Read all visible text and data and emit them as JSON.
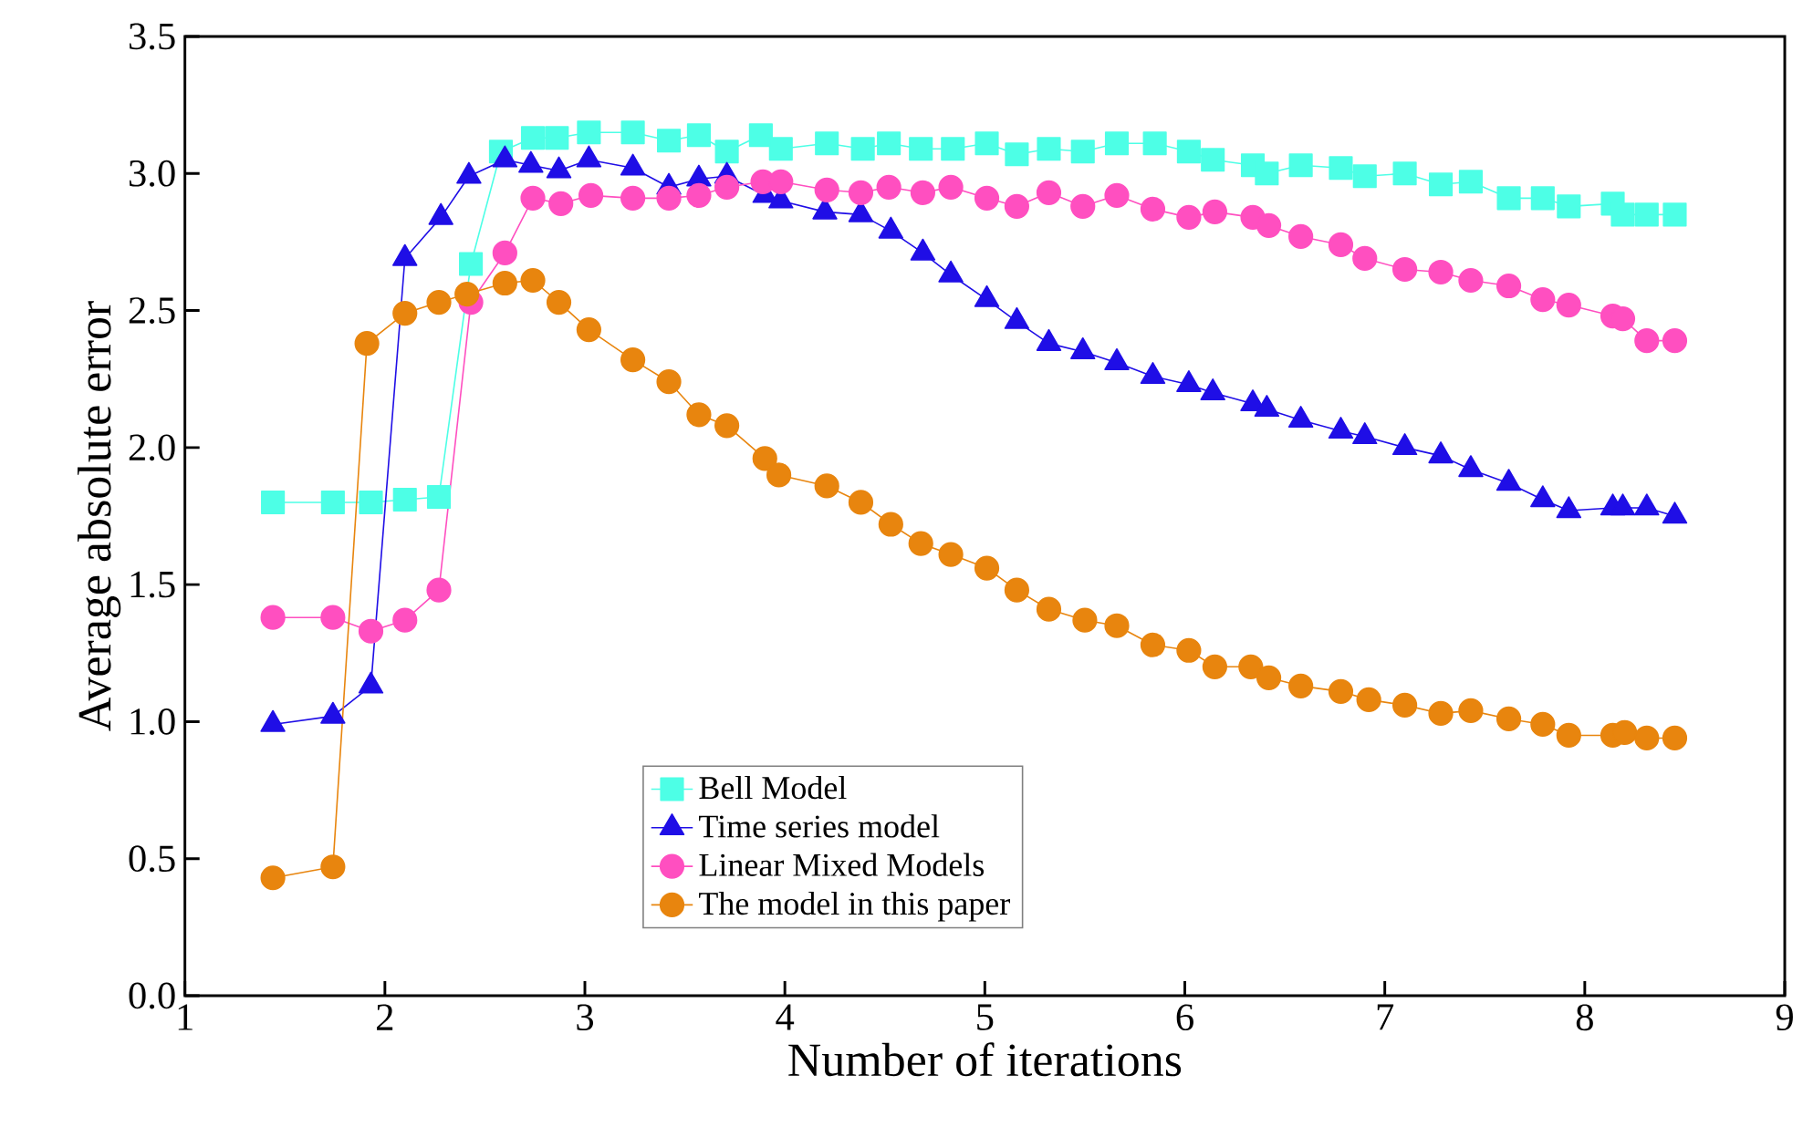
{
  "chart_data": {
    "type": "line",
    "xlabel": "Number of iterations",
    "ylabel": "Average absolute error",
    "xlim": [
      1,
      9
    ],
    "xticks": [
      1,
      2,
      3,
      4,
      5,
      6,
      7,
      8,
      9
    ],
    "ylim": [
      0,
      3.5
    ],
    "yticks": [
      {
        "value": 0,
        "label": "0.0"
      },
      {
        "value": 0.5,
        "label": "0.5"
      },
      {
        "value": 1,
        "label": "1.0"
      },
      {
        "value": 1.5,
        "label": "1.5"
      },
      {
        "value": 2,
        "label": "2.0"
      },
      {
        "value": 2.5,
        "label": "2.5"
      },
      {
        "value": 3,
        "label": "3.0"
      },
      {
        "value": 3.5,
        "label": "3.5"
      }
    ],
    "grid": false,
    "legend": "bottom",
    "line_style": "solid",
    "series": [
      {
        "name": "Bell Model",
        "color": "#4dffe6",
        "marker": "square",
        "x": [
          1.44,
          1.74,
          1.93,
          2.1,
          2.27,
          2.43,
          2.58,
          2.74,
          2.86,
          3.02,
          3.24,
          3.42,
          3.57,
          3.71,
          3.88,
          3.98,
          4.21,
          4.39,
          4.52,
          4.68,
          4.84,
          5.01,
          5.16,
          5.32,
          5.49,
          5.66,
          5.85,
          6.02,
          6.14,
          6.34,
          6.41,
          6.58,
          6.78,
          6.9,
          7.1,
          7.28,
          7.43,
          7.62,
          7.79,
          7.92,
          8.14,
          8.19,
          8.31,
          8.45
        ],
        "values": [
          1.8,
          1.8,
          1.8,
          1.81,
          1.82,
          2.67,
          3.08,
          3.13,
          3.13,
          3.15,
          3.15,
          3.12,
          3.14,
          3.08,
          3.14,
          3.09,
          3.11,
          3.09,
          3.11,
          3.09,
          3.09,
          3.11,
          3.07,
          3.09,
          3.08,
          3.11,
          3.11,
          3.08,
          3.05,
          3.03,
          3.0,
          3.03,
          3.02,
          2.99,
          3.0,
          2.96,
          2.97,
          2.91,
          2.91,
          2.88,
          2.89,
          2.85,
          2.85,
          2.85
        ]
      },
      {
        "name": "Time series model",
        "color": "#1f0ee6",
        "marker": "triangle",
        "x": [
          1.44,
          1.74,
          1.93,
          2.1,
          2.28,
          2.42,
          2.6,
          2.73,
          2.87,
          3.02,
          3.24,
          3.42,
          3.57,
          3.71,
          3.9,
          3.98,
          4.2,
          4.38,
          4.53,
          4.69,
          4.83,
          5.01,
          5.16,
          5.32,
          5.49,
          5.66,
          5.84,
          6.02,
          6.14,
          6.34,
          6.41,
          6.58,
          6.78,
          6.9,
          7.1,
          7.28,
          7.43,
          7.62,
          7.79,
          7.92,
          8.14,
          8.19,
          8.31,
          8.45
        ],
        "values": [
          0.99,
          1.02,
          1.13,
          2.69,
          2.84,
          2.99,
          3.05,
          3.03,
          3.01,
          3.05,
          3.02,
          2.95,
          2.98,
          2.99,
          2.92,
          2.9,
          2.86,
          2.85,
          2.79,
          2.71,
          2.63,
          2.54,
          2.46,
          2.38,
          2.35,
          2.31,
          2.26,
          2.23,
          2.2,
          2.16,
          2.14,
          2.1,
          2.06,
          2.04,
          2.0,
          1.97,
          1.92,
          1.87,
          1.81,
          1.77,
          1.78,
          1.78,
          1.78,
          1.75
        ]
      },
      {
        "name": "Linear Mixed Models",
        "color": "#ff4fc0",
        "marker": "circle",
        "x": [
          1.44,
          1.74,
          1.93,
          2.1,
          2.27,
          2.43,
          2.6,
          2.74,
          2.88,
          3.03,
          3.24,
          3.42,
          3.57,
          3.71,
          3.89,
          3.98,
          4.21,
          4.38,
          4.52,
          4.69,
          4.83,
          5.01,
          5.16,
          5.32,
          5.49,
          5.66,
          5.84,
          6.02,
          6.15,
          6.34,
          6.42,
          6.58,
          6.78,
          6.9,
          7.1,
          7.28,
          7.43,
          7.62,
          7.79,
          7.92,
          8.14,
          8.19,
          8.31,
          8.45
        ],
        "values": [
          1.38,
          1.38,
          1.33,
          1.37,
          1.48,
          2.53,
          2.71,
          2.91,
          2.89,
          2.92,
          2.91,
          2.91,
          2.92,
          2.95,
          2.97,
          2.97,
          2.94,
          2.93,
          2.95,
          2.93,
          2.95,
          2.91,
          2.88,
          2.93,
          2.88,
          2.92,
          2.87,
          2.84,
          2.86,
          2.84,
          2.81,
          2.77,
          2.74,
          2.69,
          2.65,
          2.64,
          2.61,
          2.59,
          2.54,
          2.52,
          2.48,
          2.47,
          2.39,
          2.39
        ]
      },
      {
        "name": "The model in this paper",
        "color": "#e8850e",
        "marker": "circle",
        "x": [
          1.44,
          1.74,
          1.91,
          2.1,
          2.27,
          2.41,
          2.6,
          2.74,
          2.87,
          3.02,
          3.24,
          3.42,
          3.57,
          3.71,
          3.9,
          3.97,
          4.21,
          4.38,
          4.53,
          4.68,
          4.83,
          5.01,
          5.16,
          5.32,
          5.5,
          5.66,
          5.84,
          6.02,
          6.15,
          6.33,
          6.42,
          6.58,
          6.78,
          6.92,
          7.1,
          7.28,
          7.43,
          7.62,
          7.79,
          7.92,
          8.14,
          8.2,
          8.31,
          8.45
        ],
        "values": [
          0.43,
          0.47,
          2.38,
          2.49,
          2.53,
          2.56,
          2.6,
          2.61,
          2.53,
          2.43,
          2.32,
          2.24,
          2.12,
          2.08,
          1.96,
          1.9,
          1.86,
          1.8,
          1.72,
          1.65,
          1.61,
          1.56,
          1.48,
          1.41,
          1.37,
          1.35,
          1.28,
          1.26,
          1.2,
          1.2,
          1.16,
          1.13,
          1.11,
          1.08,
          1.06,
          1.03,
          1.04,
          1.01,
          0.99,
          0.95,
          0.95,
          0.96,
          0.94,
          0.94
        ]
      }
    ]
  }
}
